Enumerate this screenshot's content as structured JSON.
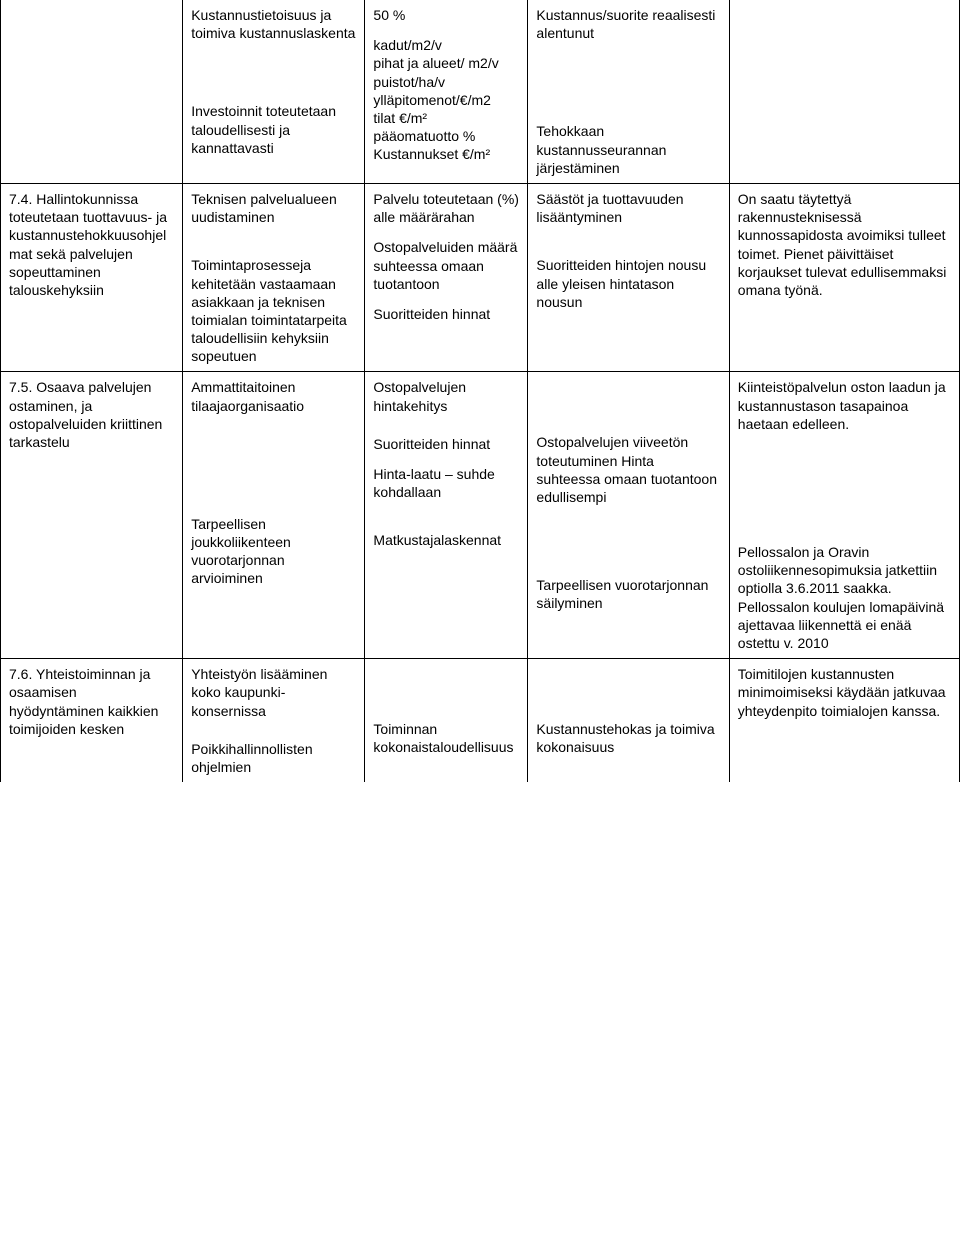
{
  "rows": [
    {
      "c1_top_none": true,
      "c1": "",
      "c2": [
        "Kustannustietoisuus ja toimiva kustannuslaskenta",
        "Investoinnit toteutetaan taloudellisesti ja kannattavasti"
      ],
      "c3": [
        "50 %",
        "kadut/m2/v\npihat ja alueet/ m2/v\npuistot/ha/v\nylläpitomenot/€/m2\ntilat €/m²\npääomatuotto %\nKustannukset €/m²"
      ],
      "c4": [
        "Kustannus/suorite reaalisesti alentunut",
        "Tehokkaan kustannusseurannan järjestäminen"
      ],
      "c5": [
        ""
      ]
    },
    {
      "c1": "7.4. Hallintokunnissa toteutetaan tuottavuus- ja kustannustehokkuusohjelmat sekä palvelujen sopeuttaminen talouskehyksiin",
      "c2": [
        "Teknisen palvelualueen uudistaminen",
        "Toimintaprosesseja kehitetään vastaamaan asiakkaan ja teknisen toimialan toimintatarpeita taloudellisiin kehyksiin sopeutuen"
      ],
      "c3": [
        "Palvelu toteutetaan (%) alle määrärahan",
        "Ostopalveluiden määrä suhteessa omaan tuotantoon",
        "Suoritteiden hinnat"
      ],
      "c4": [
        "Säästöt ja tuottavuuden lisääntyminen",
        "Suoritteiden hintojen nousu alle yleisen hintatason nousun"
      ],
      "c5": [
        "On saatu täytettyä rakennusteknisessä kunnossapidosta avoimiksi tulleet toimet. Pienet päivittäiset korjaukset tulevat edullisemmaksi omana työnä."
      ]
    },
    {
      "c1": "7.5. Osaava palvelujen ostaminen, ja ostopalveluiden kriittinen tarkastelu",
      "c2": [
        "Ammattitaitoinen tilaajaorganisaatio",
        "Tarpeellisen joukkoliikenteen vuorotarjonnan arvioiminen"
      ],
      "c3": [
        "Ostopalvelujen hintakehitys",
        "Suoritteiden hinnat",
        "Hinta-laatu – suhde kohdallaan",
        "Matkustajalaskennat"
      ],
      "c4": [
        "Ostopalvelujen viiveetön toteutuminen Hinta suhteessa omaan tuotantoon edullisempi",
        "Tarpeellisen vuorotarjonnan säilyminen"
      ],
      "c5": [
        "Kiinteistöpalvelun oston laadun ja kustannustason tasapainoa haetaan edelleen.",
        "Pellossalon ja Oravin ostoliikennesopimuksia jatkettiin optiolla 3.6.2011 saakka. Pellossalon koulujen lomapäivinä ajettavaa liikennettä ei enää ostettu v. 2010"
      ]
    },
    {
      "c1": "7.6. Yhteistoiminnan ja osaamisen hyödyntäminen kaikkien toimijoiden kesken",
      "c1_bottom_none": true,
      "c2": [
        "Yhteistyön lisääminen koko kaupunki-konsernissa",
        "Poikkihallinnollisten ohjelmien"
      ],
      "c2_bottom_none": true,
      "c3": [
        "Toiminnan kokonaistaloudellisuus"
      ],
      "c3_bottom_none": true,
      "c4": [
        "Kustannustehokas ja toimiva kokonaisuus"
      ],
      "c4_bottom_none": true,
      "c5": [
        "Toimitilojen kustannusten minimoimiseksi käydään jatkuvaa yhteydenpito toimialojen kanssa."
      ],
      "c5_bottom_none": true
    }
  ]
}
